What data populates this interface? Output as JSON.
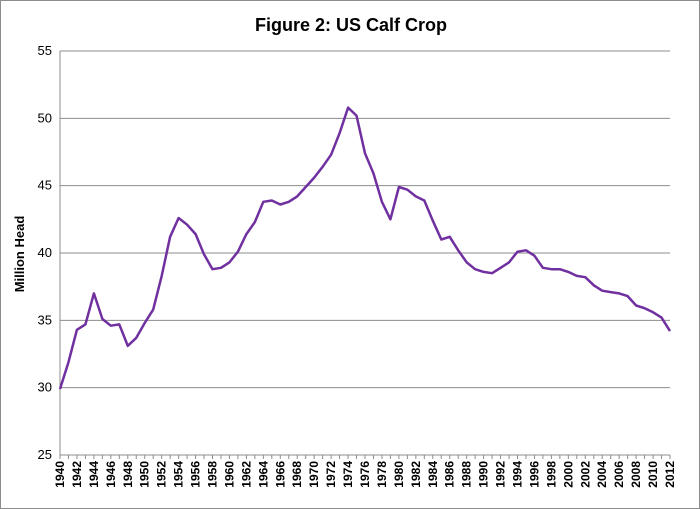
{
  "chart_data": {
    "type": "line",
    "title": "Figure 2: US Calf Crop",
    "xlabel": "",
    "ylabel": "Million Head",
    "ylim": [
      25,
      55
    ],
    "yticks": [
      25,
      30,
      35,
      40,
      45,
      50,
      55
    ],
    "xlim": [
      1940,
      2012
    ],
    "xticks": [
      1940,
      1942,
      1944,
      1946,
      1948,
      1950,
      1952,
      1954,
      1956,
      1958,
      1960,
      1962,
      1964,
      1966,
      1968,
      1970,
      1972,
      1974,
      1976,
      1978,
      1980,
      1982,
      1984,
      1986,
      1988,
      1990,
      1992,
      1994,
      1996,
      1998,
      2000,
      2002,
      2004,
      2006,
      2008,
      2010,
      2012
    ],
    "grid": "horizontal",
    "legend": "none",
    "series": [
      {
        "color": "#7030a0",
        "x": [
          1940,
          1941,
          1942,
          1943,
          1944,
          1945,
          1946,
          1947,
          1948,
          1949,
          1950,
          1951,
          1952,
          1953,
          1954,
          1955,
          1956,
          1957,
          1958,
          1959,
          1960,
          1961,
          1962,
          1963,
          1964,
          1965,
          1966,
          1967,
          1968,
          1969,
          1970,
          1971,
          1972,
          1973,
          1974,
          1975,
          1976,
          1977,
          1978,
          1979,
          1980,
          1981,
          1982,
          1983,
          1984,
          1985,
          1986,
          1987,
          1988,
          1989,
          1990,
          1991,
          1992,
          1993,
          1994,
          1995,
          1996,
          1997,
          1998,
          1999,
          2000,
          2001,
          2002,
          2003,
          2004,
          2005,
          2006,
          2007,
          2008,
          2009,
          2010,
          2011,
          2012
        ],
        "values": [
          29.9,
          31.9,
          34.3,
          34.7,
          37.0,
          35.1,
          34.6,
          34.7,
          33.1,
          33.7,
          34.8,
          35.8,
          38.3,
          41.2,
          42.6,
          42.1,
          41.4,
          39.9,
          38.8,
          38.9,
          39.3,
          40.1,
          41.4,
          42.3,
          43.8,
          43.9,
          43.6,
          43.8,
          44.2,
          44.9,
          45.6,
          46.4,
          47.3,
          48.9,
          50.8,
          50.2,
          47.4,
          45.9,
          43.8,
          42.5,
          44.9,
          44.7,
          44.2,
          43.9,
          42.4,
          41.0,
          41.2,
          40.2,
          39.3,
          38.8,
          38.6,
          38.5,
          38.9,
          39.3,
          40.1,
          40.2,
          39.8,
          38.9,
          38.8,
          38.8,
          38.6,
          38.3,
          38.2,
          37.6,
          37.2,
          37.1,
          37.0,
          36.8,
          36.1,
          35.9,
          35.6,
          35.2,
          34.2
        ]
      }
    ]
  }
}
